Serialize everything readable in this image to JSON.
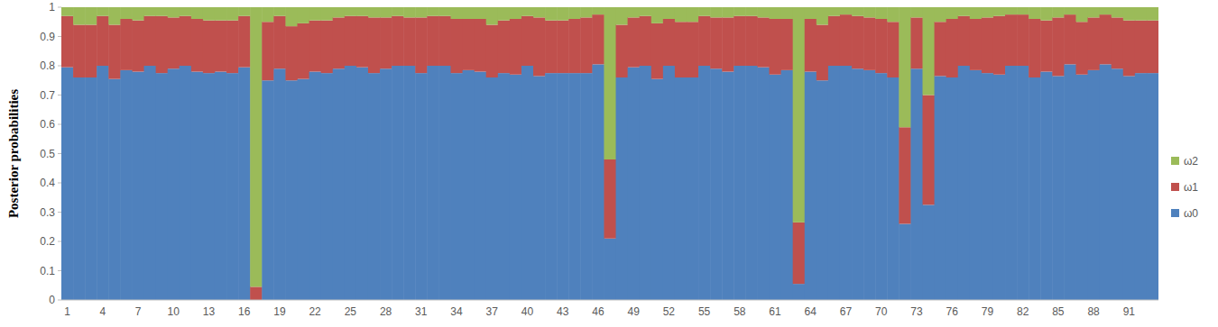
{
  "chart_data": {
    "type": "bar",
    "stacked": true,
    "y_label": "Posterior probabilities",
    "categories": [
      "1",
      null,
      null,
      "4",
      null,
      null,
      "7",
      null,
      null,
      "10",
      null,
      null,
      "13",
      null,
      null,
      "16",
      null,
      null,
      "19",
      null,
      null,
      "22",
      null,
      null,
      "25",
      null,
      null,
      "28",
      null,
      null,
      "31",
      null,
      null,
      "34",
      null,
      null,
      "37",
      null,
      null,
      "40",
      null,
      null,
      "43",
      null,
      null,
      "46",
      null,
      null,
      "49",
      null,
      null,
      "52",
      null,
      null,
      "55",
      null,
      null,
      "58",
      null,
      null,
      "61",
      null,
      null,
      "64",
      null,
      null,
      "67",
      null,
      null,
      "70",
      null,
      null,
      "73",
      null,
      null,
      "76",
      null,
      null,
      "79",
      null,
      null,
      "82",
      null,
      null,
      "85",
      null,
      null,
      "88",
      null,
      null,
      "91",
      null,
      null
    ],
    "series": [
      {
        "name": "ω0",
        "color": "#4f81bd",
        "values": [
          0.795,
          0.76,
          0.76,
          0.8,
          0.755,
          0.785,
          0.78,
          0.8,
          0.775,
          0.79,
          0.8,
          0.78,
          0.775,
          0.78,
          0.775,
          0.795,
          0,
          0.75,
          0.79,
          0.75,
          0.755,
          0.78,
          0.775,
          0.79,
          0.8,
          0.795,
          0.775,
          0.79,
          0.8,
          0.8,
          0.775,
          0.8,
          0.8,
          0.775,
          0.785,
          0.78,
          0.76,
          0.775,
          0.77,
          0.8,
          0.765,
          0.775,
          0.775,
          0.775,
          0.775,
          0.805,
          0.21,
          0.76,
          0.795,
          0.8,
          0.755,
          0.8,
          0.76,
          0.76,
          0.8,
          0.79,
          0.78,
          0.8,
          0.8,
          0.795,
          0.77,
          0.785,
          0.055,
          0.78,
          0.75,
          0.8,
          0.8,
          0.79,
          0.785,
          0.775,
          0.76,
          0.26,
          0.79,
          0.325,
          0.765,
          0.76,
          0.8,
          0.785,
          0.775,
          0.77,
          0.8,
          0.8,
          0.76,
          0.78,
          0.765,
          0.805,
          0.77,
          0.785,
          0.805,
          0.79,
          0.765,
          0.775,
          0.775
        ]
      },
      {
        "name": "ω1",
        "color": "#c0504d",
        "values": [
          0.175,
          0.18,
          0.18,
          0.17,
          0.185,
          0.175,
          0.175,
          0.17,
          0.195,
          0.175,
          0.17,
          0.18,
          0.18,
          0.175,
          0.18,
          0.175,
          0.045,
          0.2,
          0.18,
          0.185,
          0.19,
          0.175,
          0.18,
          0.175,
          0.17,
          0.175,
          0.19,
          0.175,
          0.17,
          0.165,
          0.19,
          0.17,
          0.17,
          0.185,
          0.175,
          0.18,
          0.18,
          0.18,
          0.19,
          0.17,
          0.2,
          0.18,
          0.18,
          0.185,
          0.19,
          0.17,
          0.27,
          0.18,
          0.17,
          0.17,
          0.19,
          0.16,
          0.19,
          0.19,
          0.17,
          0.175,
          0.185,
          0.17,
          0.17,
          0.17,
          0.19,
          0.175,
          0.21,
          0.18,
          0.19,
          0.17,
          0.175,
          0.18,
          0.18,
          0.185,
          0.19,
          0.33,
          0.175,
          0.375,
          0.185,
          0.2,
          0.17,
          0.175,
          0.19,
          0.2,
          0.175,
          0.175,
          0.2,
          0.175,
          0.2,
          0.17,
          0.18,
          0.18,
          0.17,
          0.175,
          0.19,
          0.18,
          0.18
        ]
      },
      {
        "name": "ω2",
        "color": "#9bbb59",
        "values": [
          0.03,
          0.06,
          0.06,
          0.03,
          0.06,
          0.04,
          0.045,
          0.03,
          0.03,
          0.035,
          0.03,
          0.04,
          0.045,
          0.045,
          0.045,
          0.03,
          0.955,
          0.05,
          0.03,
          0.065,
          0.055,
          0.045,
          0.045,
          0.035,
          0.03,
          0.03,
          0.035,
          0.035,
          0.03,
          0.035,
          0.035,
          0.03,
          0.03,
          0.04,
          0.04,
          0.04,
          0.06,
          0.045,
          0.04,
          0.03,
          0.035,
          0.045,
          0.045,
          0.04,
          0.035,
          0.025,
          0.52,
          0.06,
          0.035,
          0.03,
          0.055,
          0.04,
          0.05,
          0.05,
          0.03,
          0.035,
          0.035,
          0.03,
          0.03,
          0.035,
          0.04,
          0.04,
          0.735,
          0.04,
          0.06,
          0.03,
          0.025,
          0.03,
          0.035,
          0.04,
          0.05,
          0.41,
          0.035,
          0.3,
          0.05,
          0.04,
          0.03,
          0.04,
          0.035,
          0.03,
          0.025,
          0.025,
          0.04,
          0.045,
          0.035,
          0.025,
          0.05,
          0.035,
          0.025,
          0.035,
          0.045,
          0.045,
          0.045
        ]
      }
    ],
    "ylim": [
      0,
      1
    ],
    "yticks": [
      0,
      0.1,
      0.2,
      0.3,
      0.4,
      0.5,
      0.6,
      0.7,
      0.8,
      0.9,
      1
    ],
    "legend": "right"
  }
}
